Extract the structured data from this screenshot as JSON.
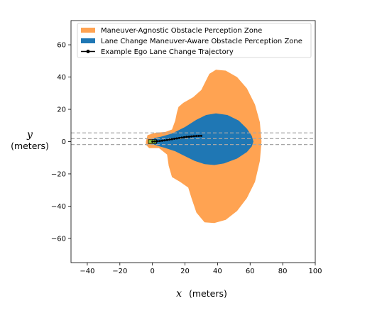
{
  "chart_data": {
    "type": "area",
    "title": "",
    "xlabel_var": "x",
    "xlabel_unit": "(meters)",
    "ylabel_var": "y",
    "ylabel_unit": "(meters)",
    "xlim": [
      -50,
      100
    ],
    "ylim": [
      -75,
      75
    ],
    "xticks": [
      -40,
      -20,
      0,
      20,
      40,
      60,
      80,
      100
    ],
    "yticks": [
      -60,
      -40,
      -20,
      0,
      20,
      40,
      60
    ],
    "grid": false,
    "legend_position": "top-right",
    "lane_lines_y": [
      5.4,
      1.8,
      -1.8
    ],
    "ego_vehicle": {
      "x_min": -2.5,
      "x_max": 2.5,
      "y_min": -1.2,
      "y_max": 1.2,
      "color": "#8cc63f"
    },
    "series": [
      {
        "name": "Maneuver-Agnostic Obstacle Perception Zone",
        "kind": "polygon",
        "color": "#ffa352",
        "points": [
          [
            -4,
            0
          ],
          [
            -3,
            4
          ],
          [
            2,
            5.5
          ],
          [
            8,
            6
          ],
          [
            12,
            7.5
          ],
          [
            14,
            13
          ],
          [
            15,
            18
          ],
          [
            16,
            21.5
          ],
          [
            19,
            24
          ],
          [
            25,
            27.5
          ],
          [
            30,
            32
          ],
          [
            33,
            38
          ],
          [
            35,
            42
          ],
          [
            39,
            44.5
          ],
          [
            45,
            44
          ],
          [
            52,
            40
          ],
          [
            58,
            33
          ],
          [
            63,
            23
          ],
          [
            66,
            12
          ],
          [
            67,
            0
          ],
          [
            66,
            -12
          ],
          [
            63,
            -25
          ],
          [
            58,
            -35
          ],
          [
            52,
            -43
          ],
          [
            45,
            -48.5
          ],
          [
            38,
            -50.5
          ],
          [
            32,
            -50
          ],
          [
            27,
            -44
          ],
          [
            24,
            -35
          ],
          [
            22,
            -28.5
          ],
          [
            17,
            -25
          ],
          [
            12,
            -22
          ],
          [
            10,
            -15
          ],
          [
            9,
            -8
          ],
          [
            4,
            -4
          ],
          [
            -2,
            -4
          ],
          [
            -4,
            -2
          ]
        ]
      },
      {
        "name": "Lane Change Maneuver-Aware Obstacle Perception Zone",
        "kind": "polygon",
        "color": "#1f77b4",
        "points": [
          [
            -1,
            0
          ],
          [
            0,
            2
          ],
          [
            5,
            3
          ],
          [
            12,
            5
          ],
          [
            20,
            9
          ],
          [
            27,
            13.5
          ],
          [
            33,
            16.5
          ],
          [
            39,
            17.5
          ],
          [
            46,
            16.5
          ],
          [
            53,
            13
          ],
          [
            58,
            8
          ],
          [
            61,
            3.5
          ],
          [
            62,
            0
          ],
          [
            61,
            -3
          ],
          [
            58,
            -6.5
          ],
          [
            52,
            -10.5
          ],
          [
            44,
            -13.5
          ],
          [
            38,
            -14.5
          ],
          [
            32,
            -14
          ],
          [
            26,
            -12
          ],
          [
            20,
            -9
          ],
          [
            14,
            -6
          ],
          [
            8,
            -4
          ],
          [
            3,
            -2.5
          ],
          [
            0,
            -1.5
          ]
        ]
      },
      {
        "name": "Example Ego Lane Change Trajectory",
        "kind": "line",
        "color": "#000000",
        "x": [
          0,
          1.5,
          3,
          4.5,
          6,
          7.5,
          9,
          10.5,
          12,
          13.5,
          15,
          16.5,
          18,
          19.5,
          21,
          22.5,
          24,
          25.5,
          27,
          28.5,
          30
        ],
        "y": [
          0,
          0.1,
          0.2,
          0.35,
          0.55,
          0.75,
          1.0,
          1.25,
          1.5,
          1.75,
          2.0,
          2.25,
          2.5,
          2.7,
          2.9,
          3.05,
          3.2,
          3.35,
          3.45,
          3.5,
          3.55
        ]
      }
    ]
  }
}
